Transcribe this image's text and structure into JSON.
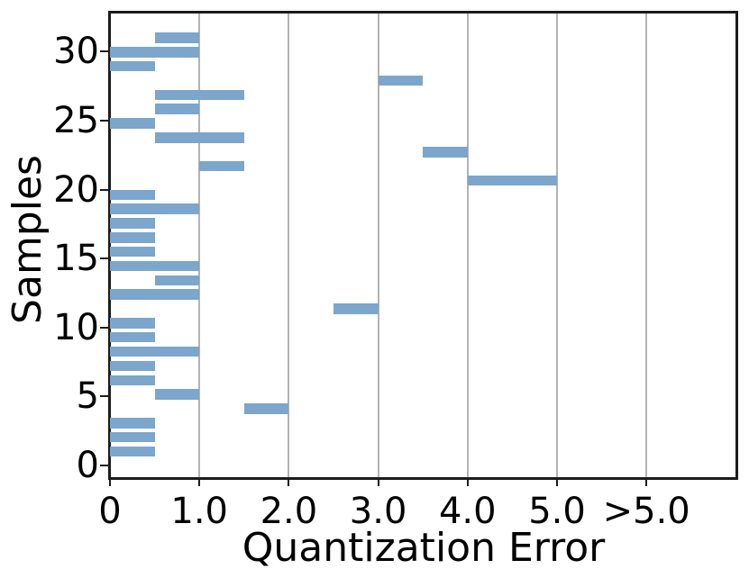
{
  "chart_data": {
    "type": "bar",
    "orientation": "horizontal",
    "title": "",
    "xlabel": "Quantization Error",
    "ylabel": "Samples",
    "x_ticks": [
      {
        "label": "0",
        "value": 0
      },
      {
        "label": "1.0",
        "value": 1
      },
      {
        "label": "2.0",
        "value": 2
      },
      {
        "label": "3.0",
        "value": 3
      },
      {
        "label": "4.0",
        "value": 4
      },
      {
        "label": "5.0",
        "value": 5
      },
      {
        "label": ">5.0",
        "value": 6
      }
    ],
    "y_ticks": [
      {
        "label": "0",
        "value": 0
      },
      {
        "label": "5",
        "value": 5
      },
      {
        "label": "10",
        "value": 10
      },
      {
        "label": "15",
        "value": 15
      },
      {
        "label": "20",
        "value": 20
      },
      {
        "label": "25",
        "value": 25
      },
      {
        "label": "30",
        "value": 30
      }
    ],
    "xlim": [
      0,
      7
    ],
    "ylim": [
      -1,
      33
    ],
    "grid": "vertical",
    "gridline_x_values": [
      1,
      2,
      3,
      4,
      5,
      6
    ],
    "legend": "none",
    "colors": {
      "bar": "#7ca6cb",
      "gridline": "#b3b3b3",
      "spine": "#1c1c1c",
      "text": "#000000",
      "background": "#ffffff"
    },
    "samples": [
      {
        "id": 1,
        "error_range": [
          0,
          0.5
        ]
      },
      {
        "id": 2,
        "error_range": [
          0,
          0.5
        ]
      },
      {
        "id": 3,
        "error_range": [
          0,
          0.5
        ]
      },
      {
        "id": 4,
        "error_range": [
          1.5,
          2.0
        ]
      },
      {
        "id": 5,
        "error_range": [
          0.5,
          1.0
        ]
      },
      {
        "id": 6,
        "error_range": [
          0,
          0.5
        ]
      },
      {
        "id": 7,
        "error_range": [
          0,
          0.5
        ]
      },
      {
        "id": 8,
        "error_range": [
          0,
          1.0
        ]
      },
      {
        "id": 9,
        "error_range": [
          0,
          0.5
        ]
      },
      {
        "id": 10,
        "error_range": [
          0,
          0.5
        ]
      },
      {
        "id": 11,
        "error_range": [
          2.5,
          3.0
        ]
      },
      {
        "id": 12,
        "error_range": [
          0,
          1.0
        ]
      },
      {
        "id": 13,
        "error_range": [
          0.5,
          1.0
        ]
      },
      {
        "id": 14,
        "error_range": [
          0,
          1.0
        ]
      },
      {
        "id": 15,
        "error_range": [
          0,
          0.5
        ]
      },
      {
        "id": 16,
        "error_range": [
          0,
          0.5
        ]
      },
      {
        "id": 17,
        "error_range": [
          0,
          0.5
        ]
      },
      {
        "id": 18,
        "error_range": [
          0,
          1.0
        ]
      },
      {
        "id": 19,
        "error_range": [
          0,
          0.5
        ]
      },
      {
        "id": 20,
        "error_range": [
          4.0,
          5.0
        ]
      },
      {
        "id": 21,
        "error_range": [
          1.0,
          1.5
        ]
      },
      {
        "id": 22,
        "error_range": [
          3.5,
          4.0
        ]
      },
      {
        "id": 23,
        "error_range": [
          0.5,
          1.5
        ]
      },
      {
        "id": 24,
        "error_range": [
          0,
          0.5
        ]
      },
      {
        "id": 25,
        "error_range": [
          0.5,
          1.0
        ]
      },
      {
        "id": 26,
        "error_range": [
          0.5,
          1.5
        ]
      },
      {
        "id": 27,
        "error_range": [
          3.0,
          3.5
        ]
      },
      {
        "id": 28,
        "error_range": [
          0,
          0.5
        ]
      },
      {
        "id": 29,
        "error_range": [
          0,
          1.0
        ]
      },
      {
        "id": 30,
        "error_range": [
          0.5,
          1.0
        ]
      }
    ]
  }
}
